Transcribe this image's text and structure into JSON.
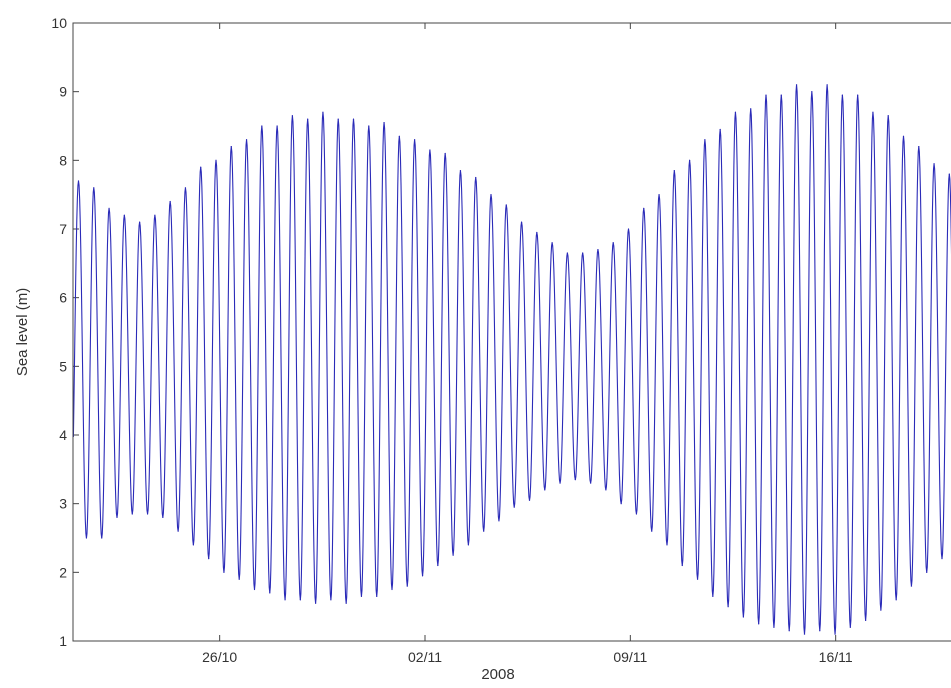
{
  "chart_data": {
    "type": "line",
    "title": "",
    "xlabel": "2008",
    "ylabel": "Sea level (m)",
    "xlim": [
      "2008-10-21T00:00",
      "2008-11-20T00:00"
    ],
    "ylim": [
      1,
      10
    ],
    "x_ticks": [
      "26/10",
      "02/11",
      "09/11",
      "16/11"
    ],
    "y_ticks": [
      "1",
      "2",
      "3",
      "4",
      "5",
      "6",
      "7",
      "8",
      "9",
      "10"
    ],
    "grid": false,
    "legend": "none",
    "series_color": "#2b2bb8",
    "series": [
      {
        "values_kind": "high and low water levels of successive tides (semidiurnal, ~2 per day), in metres",
        "high_water": [
          [
            "2008-10-21T04:30",
            7.7
          ],
          [
            "2008-10-21T17:00",
            7.6
          ],
          [
            "2008-10-22T05:30",
            7.3
          ],
          [
            "2008-10-22T18:00",
            7.2
          ],
          [
            "2008-10-23T06:30",
            7.1
          ],
          [
            "2008-10-23T19:00",
            7.2
          ],
          [
            "2008-10-24T07:30",
            7.4
          ],
          [
            "2008-10-24T20:00",
            7.6
          ],
          [
            "2008-10-25T08:30",
            7.9
          ],
          [
            "2008-10-25T21:00",
            8.0
          ],
          [
            "2008-10-26T09:30",
            8.2
          ],
          [
            "2008-10-26T22:00",
            8.3
          ],
          [
            "2008-10-27T10:30",
            8.5
          ],
          [
            "2008-10-27T23:00",
            8.5
          ],
          [
            "2008-10-28T11:30",
            8.65
          ],
          [
            "2008-10-29T00:00",
            8.6
          ],
          [
            "2008-10-29T12:30",
            8.7
          ],
          [
            "2008-10-30T01:00",
            8.6
          ],
          [
            "2008-10-30T13:30",
            8.6
          ],
          [
            "2008-10-31T02:00",
            8.5
          ],
          [
            "2008-10-31T14:30",
            8.55
          ],
          [
            "2008-11-01T03:00",
            8.35
          ],
          [
            "2008-11-01T15:30",
            8.3
          ],
          [
            "2008-11-02T04:00",
            8.15
          ],
          [
            "2008-11-02T16:30",
            8.1
          ],
          [
            "2008-11-03T05:00",
            7.85
          ],
          [
            "2008-11-03T17:30",
            7.75
          ],
          [
            "2008-11-04T06:00",
            7.5
          ],
          [
            "2008-11-04T18:30",
            7.35
          ],
          [
            "2008-11-05T07:00",
            7.1
          ],
          [
            "2008-11-05T19:30",
            6.95
          ],
          [
            "2008-11-06T08:00",
            6.8
          ],
          [
            "2008-11-06T20:30",
            6.65
          ],
          [
            "2008-11-07T09:00",
            6.65
          ],
          [
            "2008-11-07T21:30",
            6.7
          ],
          [
            "2008-11-08T10:00",
            6.8
          ],
          [
            "2008-11-08T22:30",
            7.0
          ],
          [
            "2008-11-09T11:00",
            7.3
          ],
          [
            "2008-11-09T23:30",
            7.5
          ],
          [
            "2008-11-10T12:00",
            7.85
          ],
          [
            "2008-11-11T00:30",
            8.0
          ],
          [
            "2008-11-11T13:00",
            8.3
          ],
          [
            "2008-11-12T01:30",
            8.45
          ],
          [
            "2008-11-12T14:00",
            8.7
          ],
          [
            "2008-11-13T02:30",
            8.75
          ],
          [
            "2008-11-13T15:00",
            8.95
          ],
          [
            "2008-11-14T03:30",
            8.95
          ],
          [
            "2008-11-14T16:00",
            9.1
          ],
          [
            "2008-11-15T04:30",
            9.0
          ],
          [
            "2008-11-15T17:00",
            9.1
          ],
          [
            "2008-11-16T05:30",
            8.95
          ],
          [
            "2008-11-16T18:00",
            8.95
          ],
          [
            "2008-11-17T06:30",
            8.7
          ],
          [
            "2008-11-17T19:00",
            8.65
          ],
          [
            "2008-11-18T07:30",
            8.35
          ],
          [
            "2008-11-18T20:00",
            8.2
          ],
          [
            "2008-11-19T08:30",
            7.95
          ],
          [
            "2008-11-19T21:00",
            7.8
          ]
        ],
        "low_water": [
          [
            "2008-10-21T11:00",
            2.5
          ],
          [
            "2008-10-21T23:30",
            2.5
          ],
          [
            "2008-10-22T12:00",
            2.8
          ],
          [
            "2008-10-23T00:30",
            2.85
          ],
          [
            "2008-10-23T13:00",
            2.85
          ],
          [
            "2008-10-24T01:30",
            2.8
          ],
          [
            "2008-10-24T14:00",
            2.6
          ],
          [
            "2008-10-25T02:30",
            2.4
          ],
          [
            "2008-10-25T15:00",
            2.2
          ],
          [
            "2008-10-26T03:30",
            2.0
          ],
          [
            "2008-10-26T16:00",
            1.9
          ],
          [
            "2008-10-27T04:30",
            1.75
          ],
          [
            "2008-10-27T17:00",
            1.7
          ],
          [
            "2008-10-28T05:30",
            1.6
          ],
          [
            "2008-10-28T18:00",
            1.6
          ],
          [
            "2008-10-29T06:30",
            1.55
          ],
          [
            "2008-10-29T19:00",
            1.6
          ],
          [
            "2008-10-30T07:30",
            1.55
          ],
          [
            "2008-10-30T20:00",
            1.65
          ],
          [
            "2008-10-31T08:30",
            1.65
          ],
          [
            "2008-10-31T21:00",
            1.75
          ],
          [
            "2008-11-01T09:30",
            1.8
          ],
          [
            "2008-11-01T22:00",
            1.95
          ],
          [
            "2008-11-02T10:30",
            2.1
          ],
          [
            "2008-11-02T23:00",
            2.25
          ],
          [
            "2008-11-03T11:30",
            2.4
          ],
          [
            "2008-11-04T00:00",
            2.6
          ],
          [
            "2008-11-04T12:30",
            2.75
          ],
          [
            "2008-11-05T01:00",
            2.95
          ],
          [
            "2008-11-05T13:30",
            3.05
          ],
          [
            "2008-11-06T02:00",
            3.2
          ],
          [
            "2008-11-06T14:30",
            3.3
          ],
          [
            "2008-11-07T03:00",
            3.35
          ],
          [
            "2008-11-07T15:30",
            3.3
          ],
          [
            "2008-11-08T04:00",
            3.2
          ],
          [
            "2008-11-08T16:30",
            3.0
          ],
          [
            "2008-11-09T05:00",
            2.85
          ],
          [
            "2008-11-09T17:30",
            2.6
          ],
          [
            "2008-11-10T06:00",
            2.4
          ],
          [
            "2008-11-10T18:30",
            2.1
          ],
          [
            "2008-11-11T07:00",
            1.9
          ],
          [
            "2008-11-11T19:30",
            1.65
          ],
          [
            "2008-11-12T08:00",
            1.5
          ],
          [
            "2008-11-12T20:30",
            1.35
          ],
          [
            "2008-11-13T09:00",
            1.25
          ],
          [
            "2008-11-13T21:30",
            1.2
          ],
          [
            "2008-11-14T10:00",
            1.15
          ],
          [
            "2008-11-14T22:30",
            1.1
          ],
          [
            "2008-11-15T11:00",
            1.15
          ],
          [
            "2008-11-15T23:30",
            1.1
          ],
          [
            "2008-11-16T12:00",
            1.2
          ],
          [
            "2008-11-17T00:30",
            1.3
          ],
          [
            "2008-11-17T13:00",
            1.45
          ],
          [
            "2008-11-18T01:30",
            1.6
          ],
          [
            "2008-11-18T14:00",
            1.8
          ],
          [
            "2008-11-19T02:30",
            2.0
          ],
          [
            "2008-11-19T15:00",
            2.2
          ]
        ]
      }
    ]
  }
}
